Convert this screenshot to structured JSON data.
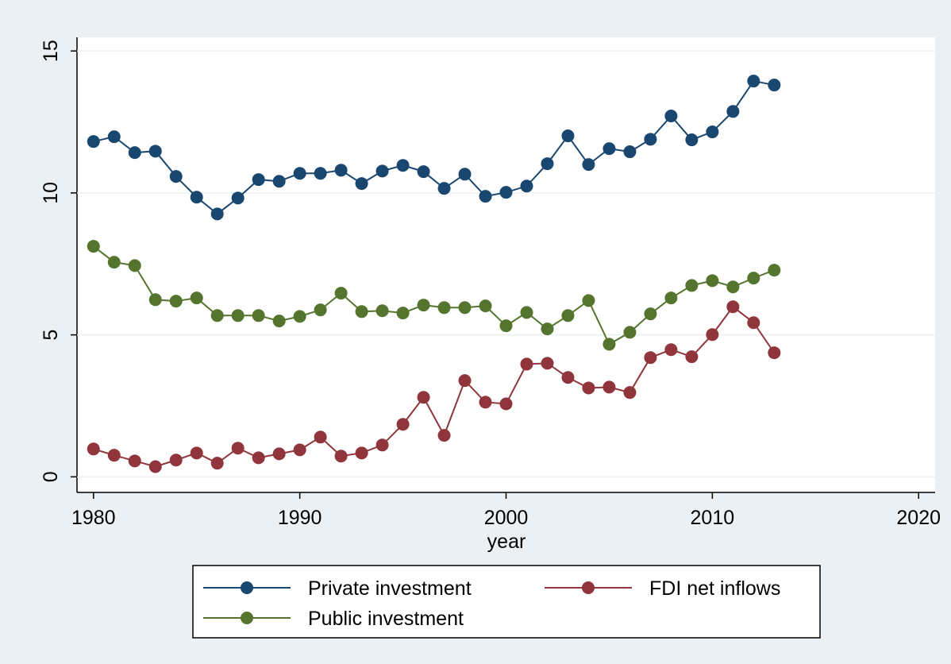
{
  "chart_data": {
    "type": "line",
    "x_label": "year",
    "x": [
      1980,
      1981,
      1982,
      1983,
      1984,
      1985,
      1986,
      1987,
      1988,
      1989,
      1990,
      1991,
      1992,
      1993,
      1994,
      1995,
      1996,
      1997,
      1998,
      1999,
      2000,
      2001,
      2002,
      2003,
      2004,
      2005,
      2006,
      2007,
      2008,
      2009,
      2010,
      2011,
      2012,
      2013
    ],
    "series": [
      {
        "name": "Private investment",
        "color": "#1a476f",
        "values": [
          11.81,
          11.98,
          11.42,
          11.47,
          10.58,
          9.85,
          9.26,
          9.82,
          10.47,
          10.41,
          10.69,
          10.69,
          10.8,
          10.33,
          10.77,
          10.97,
          10.75,
          10.16,
          10.66,
          9.88,
          10.02,
          10.24,
          11.03,
          12.01,
          11.0,
          11.56,
          11.45,
          11.89,
          12.71,
          11.87,
          12.15,
          12.87,
          13.94,
          13.8
        ]
      },
      {
        "name": "FDI net inflows",
        "color": "#90353b",
        "values": [
          0.98,
          0.76,
          0.56,
          0.36,
          0.59,
          0.84,
          0.48,
          1.01,
          0.67,
          0.81,
          0.95,
          1.4,
          0.73,
          0.84,
          1.12,
          1.85,
          2.8,
          1.46,
          3.39,
          2.63,
          2.57,
          3.97,
          4.0,
          3.5,
          3.13,
          3.16,
          2.97,
          4.2,
          4.48,
          4.23,
          5.01,
          5.99,
          5.43,
          4.37
        ]
      },
      {
        "name": "Public investment",
        "color": "#55752f",
        "values": [
          8.12,
          7.56,
          7.44,
          6.24,
          6.19,
          6.3,
          5.68,
          5.68,
          5.68,
          5.49,
          5.65,
          5.88,
          6.47,
          5.82,
          5.85,
          5.77,
          6.05,
          5.96,
          5.96,
          6.02,
          5.32,
          5.79,
          5.21,
          5.68,
          6.21,
          4.67,
          5.09,
          5.74,
          6.3,
          6.74,
          6.91,
          6.69,
          7.0,
          7.28
        ]
      }
    ],
    "xlim": [
      1979.2,
      2020.8
    ],
    "xticks": [
      1980,
      1990,
      2000,
      2010,
      2020
    ],
    "ylim": [
      -0.55,
      15.48
    ],
    "yticks": [
      0,
      5,
      10,
      15
    ],
    "grid": true,
    "legend_position": "bottom"
  }
}
